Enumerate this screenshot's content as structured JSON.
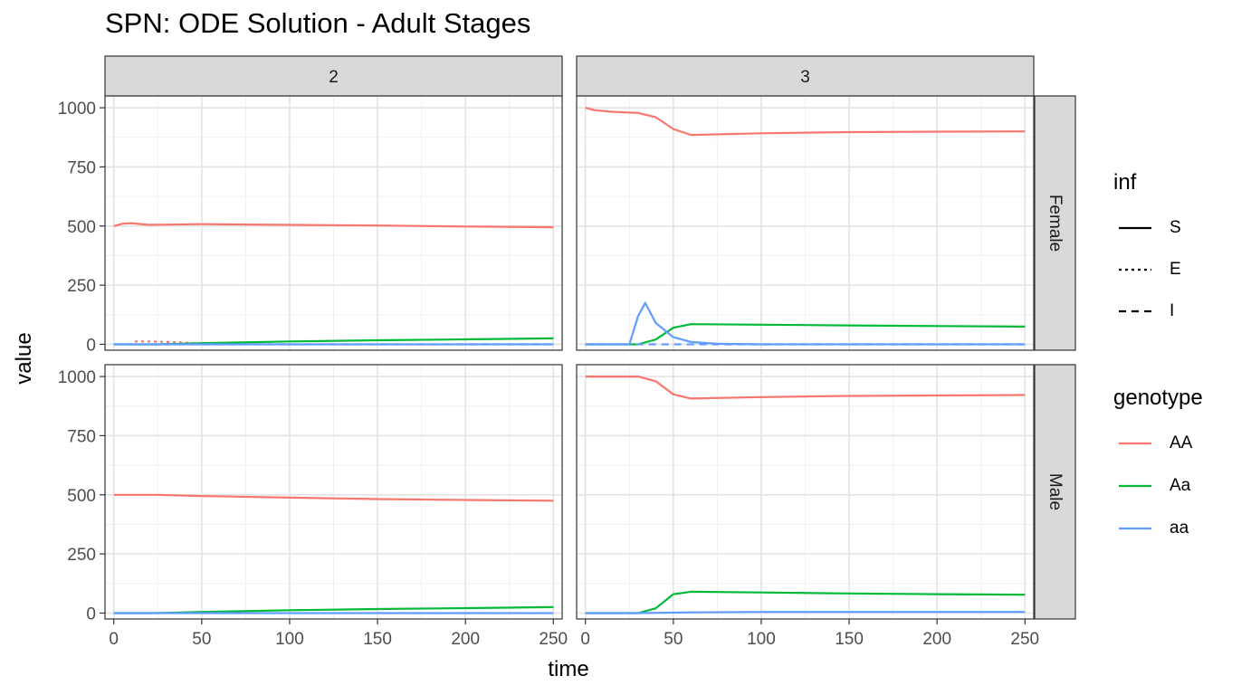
{
  "title": "SPN: ODE Solution - Adult Stages",
  "chart_data": {
    "type": "line",
    "title": "SPN: ODE Solution - Adult Stages",
    "xlabel": "time",
    "ylabel": "value",
    "xlim": [
      -5,
      255
    ],
    "ylim": [
      -25,
      1050
    ],
    "x_ticks": [
      0,
      50,
      100,
      150,
      200,
      250
    ],
    "y_ticks": [
      0,
      250,
      500,
      750,
      1000
    ],
    "grid": true,
    "facet_columns": [
      "2",
      "3"
    ],
    "facet_rows": [
      "Female",
      "Male"
    ],
    "legends": [
      {
        "title": "inf",
        "entries": [
          {
            "label": "S",
            "dash": "solid"
          },
          {
            "label": "E",
            "dash": "dotted"
          },
          {
            "label": "I",
            "dash": "dashed"
          }
        ]
      },
      {
        "title": "genotype",
        "entries": [
          {
            "label": "AA",
            "color": "#F8766D"
          },
          {
            "label": "Aa",
            "color": "#00BA38"
          },
          {
            "label": "aa",
            "color": "#619CFF"
          }
        ]
      }
    ],
    "panels": [
      {
        "col": "2",
        "row": "Female",
        "series": [
          {
            "genotype": "AA",
            "inf": "S",
            "points": [
              [
                0,
                500
              ],
              [
                5,
                510
              ],
              [
                10,
                512
              ],
              [
                20,
                505
              ],
              [
                30,
                506
              ],
              [
                50,
                508
              ],
              [
                100,
                505
              ],
              [
                150,
                502
              ],
              [
                200,
                498
              ],
              [
                250,
                495
              ]
            ]
          },
          {
            "genotype": "AA",
            "inf": "E",
            "points": [
              [
                12,
                12
              ],
              [
                20,
                12
              ],
              [
                30,
                10
              ],
              [
                40,
                7
              ],
              [
                50,
                3
              ],
              [
                70,
                1
              ],
              [
                100,
                0
              ]
            ]
          },
          {
            "genotype": "Aa",
            "inf": "S",
            "points": [
              [
                0,
                0
              ],
              [
                25,
                0
              ],
              [
                50,
                5
              ],
              [
                100,
                12
              ],
              [
                150,
                17
              ],
              [
                200,
                21
              ],
              [
                250,
                25
              ]
            ]
          },
          {
            "genotype": "aa",
            "inf": "S",
            "points": [
              [
                0,
                0
              ],
              [
                250,
                0
              ]
            ]
          },
          {
            "genotype": "aa",
            "inf": "I",
            "points": [
              [
                0,
                0
              ],
              [
                250,
                0
              ]
            ]
          }
        ]
      },
      {
        "col": "3",
        "row": "Female",
        "series": [
          {
            "genotype": "AA",
            "inf": "S",
            "points": [
              [
                0,
                1000
              ],
              [
                5,
                990
              ],
              [
                15,
                983
              ],
              [
                30,
                978
              ],
              [
                40,
                960
              ],
              [
                50,
                910
              ],
              [
                60,
                885
              ],
              [
                100,
                892
              ],
              [
                150,
                897
              ],
              [
                200,
                899
              ],
              [
                250,
                900
              ]
            ]
          },
          {
            "genotype": "Aa",
            "inf": "S",
            "points": [
              [
                0,
                0
              ],
              [
                30,
                0
              ],
              [
                40,
                20
              ],
              [
                50,
                70
              ],
              [
                60,
                85
              ],
              [
                100,
                83
              ],
              [
                150,
                80
              ],
              [
                200,
                77
              ],
              [
                250,
                75
              ]
            ]
          },
          {
            "genotype": "aa",
            "inf": "S",
            "points": [
              [
                0,
                0
              ],
              [
                25,
                0
              ],
              [
                30,
                120
              ],
              [
                34,
                175
              ],
              [
                40,
                90
              ],
              [
                50,
                30
              ],
              [
                60,
                10
              ],
              [
                75,
                2
              ],
              [
                100,
                0
              ],
              [
                250,
                0
              ]
            ]
          },
          {
            "genotype": "aa",
            "inf": "I",
            "points": [
              [
                0,
                0
              ],
              [
                250,
                0
              ]
            ]
          }
        ]
      },
      {
        "col": "2",
        "row": "Male",
        "series": [
          {
            "genotype": "AA",
            "inf": "S",
            "points": [
              [
                0,
                500
              ],
              [
                25,
                500
              ],
              [
                50,
                495
              ],
              [
                100,
                488
              ],
              [
                150,
                482
              ],
              [
                200,
                478
              ],
              [
                250,
                475
              ]
            ]
          },
          {
            "genotype": "Aa",
            "inf": "S",
            "points": [
              [
                0,
                0
              ],
              [
                25,
                0
              ],
              [
                50,
                5
              ],
              [
                100,
                12
              ],
              [
                150,
                17
              ],
              [
                200,
                21
              ],
              [
                250,
                25
              ]
            ]
          },
          {
            "genotype": "aa",
            "inf": "S",
            "points": [
              [
                0,
                0
              ],
              [
                250,
                0
              ]
            ]
          }
        ]
      },
      {
        "col": "3",
        "row": "Male",
        "series": [
          {
            "genotype": "AA",
            "inf": "S",
            "points": [
              [
                0,
                1000
              ],
              [
                10,
                1000
              ],
              [
                30,
                1000
              ],
              [
                40,
                980
              ],
              [
                50,
                925
              ],
              [
                60,
                907
              ],
              [
                100,
                913
              ],
              [
                150,
                918
              ],
              [
                200,
                920
              ],
              [
                250,
                922
              ]
            ]
          },
          {
            "genotype": "Aa",
            "inf": "S",
            "points": [
              [
                0,
                0
              ],
              [
                30,
                0
              ],
              [
                40,
                20
              ],
              [
                50,
                80
              ],
              [
                60,
                90
              ],
              [
                100,
                87
              ],
              [
                150,
                83
              ],
              [
                200,
                80
              ],
              [
                250,
                78
              ]
            ]
          },
          {
            "genotype": "aa",
            "inf": "S",
            "points": [
              [
                0,
                0
              ],
              [
                30,
                0
              ],
              [
                60,
                3
              ],
              [
                100,
                5
              ],
              [
                250,
                5
              ]
            ]
          }
        ]
      }
    ]
  }
}
